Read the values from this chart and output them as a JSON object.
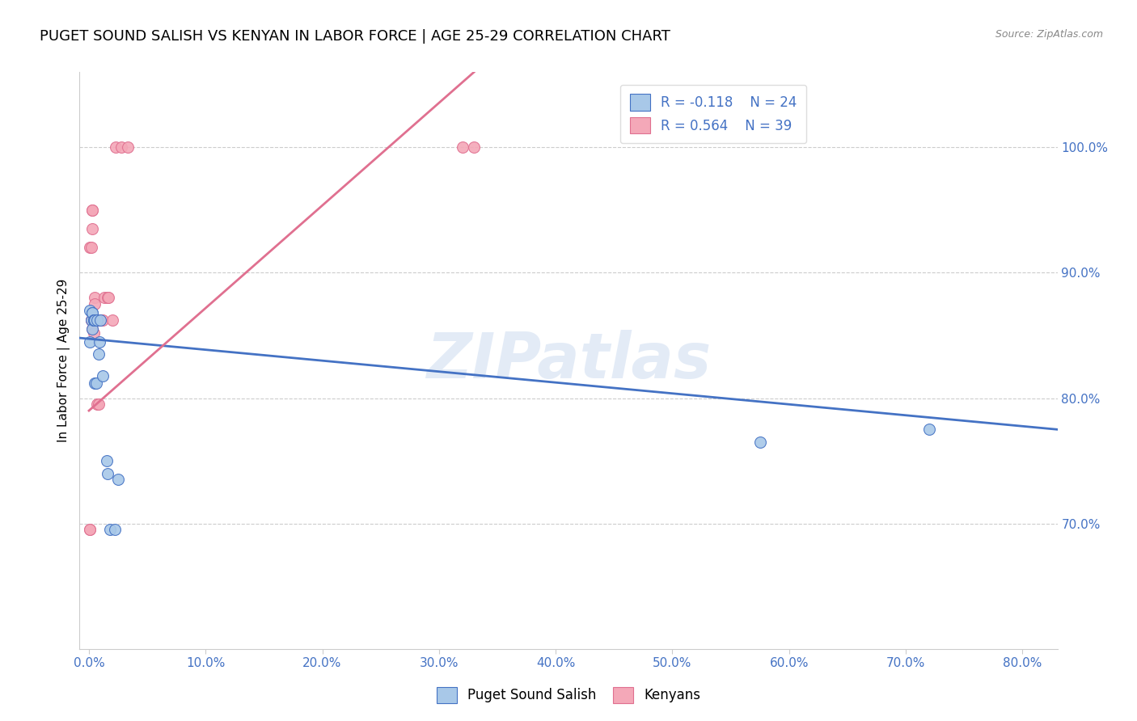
{
  "title": "PUGET SOUND SALISH VS KENYAN IN LABOR FORCE | AGE 25-29 CORRELATION CHART",
  "source": "Source: ZipAtlas.com",
  "ylabel": "In Labor Force | Age 25-29",
  "x_tick_vals": [
    0.0,
    0.1,
    0.2,
    0.3,
    0.4,
    0.5,
    0.6,
    0.7,
    0.8
  ],
  "x_tick_labels": [
    "0.0%",
    "10.0%",
    "20.0%",
    "30.0%",
    "40.0%",
    "50.0%",
    "60.0%",
    "70.0%",
    "80.0%"
  ],
  "y_tick_vals": [
    0.7,
    0.8,
    0.9,
    1.0
  ],
  "y_tick_labels": [
    "70.0%",
    "80.0%",
    "90.0%",
    "100.0%"
  ],
  "xlim": [
    -0.008,
    0.83
  ],
  "ylim": [
    0.6,
    1.06
  ],
  "blue_scatter_x": [
    0.001,
    0.001,
    0.002,
    0.003,
    0.003,
    0.003,
    0.004,
    0.004,
    0.005,
    0.005,
    0.005,
    0.006,
    0.007,
    0.008,
    0.009,
    0.01,
    0.012,
    0.015,
    0.016,
    0.018,
    0.022,
    0.025,
    0.575,
    0.72
  ],
  "blue_scatter_y": [
    0.845,
    0.87,
    0.862,
    0.868,
    0.868,
    0.855,
    0.862,
    0.862,
    0.862,
    0.862,
    0.812,
    0.812,
    0.862,
    0.835,
    0.845,
    0.862,
    0.818,
    0.75,
    0.74,
    0.695,
    0.695,
    0.735,
    0.765,
    0.775
  ],
  "pink_scatter_x": [
    0.001,
    0.001,
    0.001,
    0.002,
    0.002,
    0.002,
    0.002,
    0.003,
    0.003,
    0.003,
    0.003,
    0.003,
    0.003,
    0.003,
    0.003,
    0.004,
    0.004,
    0.004,
    0.004,
    0.005,
    0.005,
    0.005,
    0.005,
    0.006,
    0.007,
    0.007,
    0.008,
    0.009,
    0.01,
    0.012,
    0.013,
    0.016,
    0.017,
    0.02,
    0.023,
    0.028,
    0.033,
    0.32,
    0.33
  ],
  "pink_scatter_y": [
    0.695,
    0.695,
    0.92,
    0.92,
    0.862,
    0.862,
    0.862,
    0.862,
    0.862,
    0.862,
    0.95,
    0.95,
    0.935,
    0.862,
    0.855,
    0.862,
    0.862,
    0.862,
    0.852,
    0.88,
    0.862,
    0.875,
    0.862,
    0.862,
    0.862,
    0.795,
    0.795,
    0.862,
    0.862,
    0.862,
    0.88,
    0.88,
    0.88,
    0.862,
    1.0,
    1.0,
    1.0,
    1.0,
    1.0
  ],
  "blue_line_x": [
    -0.008,
    0.83
  ],
  "blue_line_y": [
    0.848,
    0.775
  ],
  "pink_line_x": [
    0.0,
    0.33
  ],
  "pink_line_y": [
    0.79,
    1.06
  ],
  "blue_color": "#A8C8E8",
  "pink_color": "#F4A8B8",
  "blue_line_color": "#4472C4",
  "pink_line_color": "#E07090",
  "watermark": "ZIPatlas",
  "legend_r_blue": "R = -0.118",
  "legend_n_blue": "N = 24",
  "legend_r_pink": "R = 0.564",
  "legend_n_pink": "N = 39",
  "blue_label": "Puget Sound Salish",
  "pink_label": "Kenyans",
  "title_fontsize": 13,
  "axis_fontsize": 11,
  "tick_fontsize": 11,
  "marker_size": 100,
  "background_color": "#FFFFFF",
  "grid_color": "#CCCCCC",
  "right_tick_color": "#4472C4",
  "bottom_tick_color": "#4472C4"
}
